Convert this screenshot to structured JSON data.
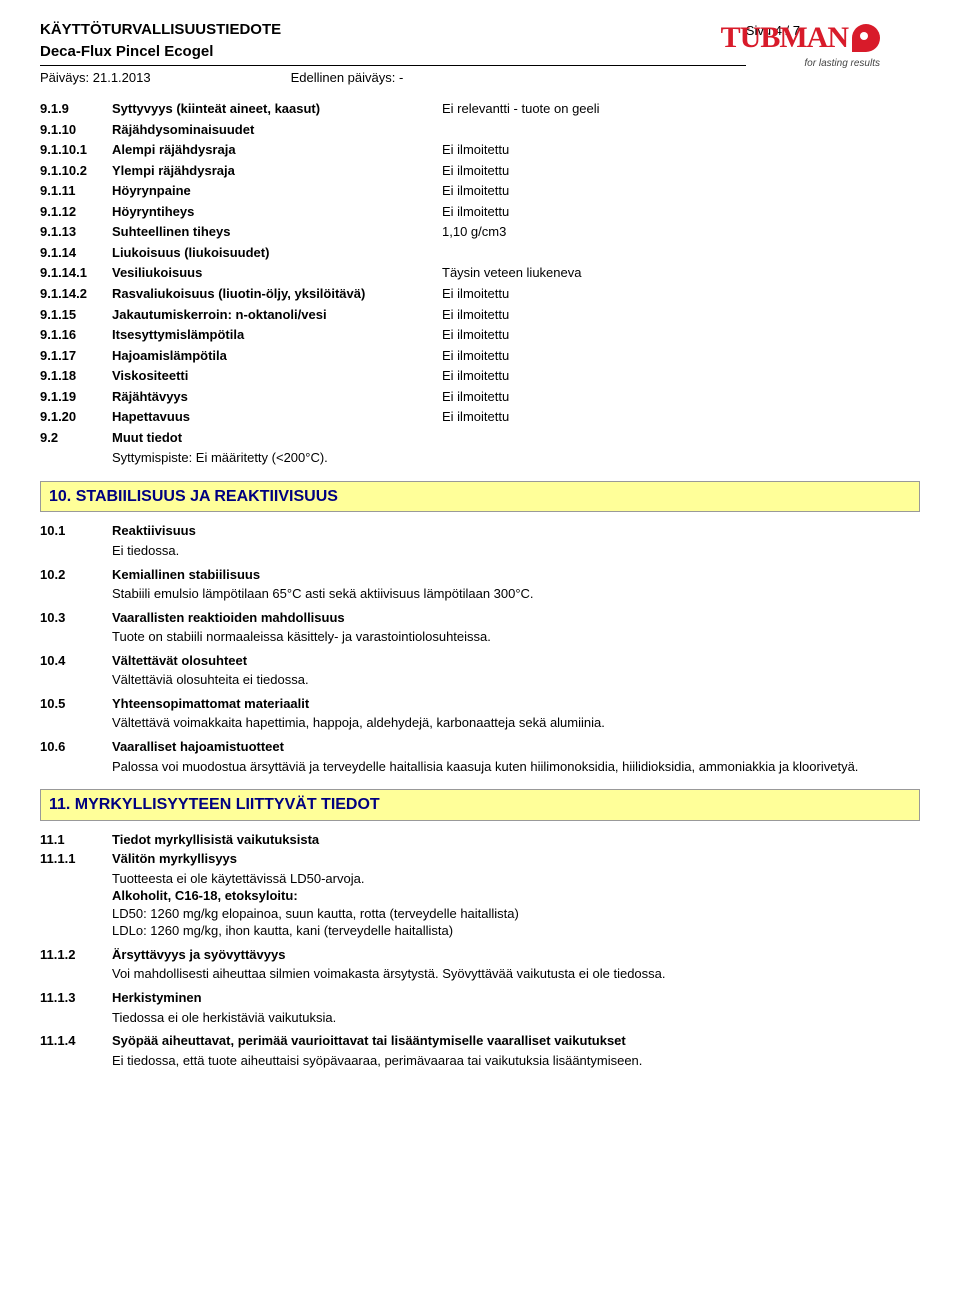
{
  "header": {
    "doc_title": "KÄYTTÖTURVALLISUUSTIEDOTE",
    "product_name": "Deca-Flux Pincel Ecogel",
    "date_label": "Päiväys: 21.1.2013",
    "prev_date_label": "Edellinen päiväys: -",
    "page_label": "Sivu 4 / 7",
    "logo_text": "TUBMAN",
    "logo_tagline": "for lasting results"
  },
  "section9": {
    "rows": [
      {
        "num": "9.1.9",
        "label": "Syttyvyys (kiinteät aineet, kaasut)",
        "val": "Ei relevantti - tuote on geeli"
      },
      {
        "num": "9.1.10",
        "label": "Räjähdysominaisuudet",
        "val": ""
      },
      {
        "num": "9.1.10.1",
        "label": "Alempi räjähdysraja",
        "val": "Ei ilmoitettu"
      },
      {
        "num": "9.1.10.2",
        "label": "Ylempi räjähdysraja",
        "val": "Ei ilmoitettu"
      },
      {
        "num": "9.1.11",
        "label": "Höyrynpaine",
        "val": "Ei ilmoitettu"
      },
      {
        "num": "9.1.12",
        "label": "Höyryntiheys",
        "val": "Ei ilmoitettu"
      },
      {
        "num": "9.1.13",
        "label": "Suhteellinen tiheys",
        "val": "1,10 g/cm3"
      },
      {
        "num": "9.1.14",
        "label": "Liukoisuus (liukoisuudet)",
        "val": ""
      },
      {
        "num": "9.1.14.1",
        "label": "Vesiliukoisuus",
        "val": "Täysin veteen liukeneva"
      },
      {
        "num": "9.1.14.2",
        "label": "Rasvaliukoisuus (liuotin-öljy, yksilöitävä)",
        "val": "Ei ilmoitettu"
      },
      {
        "num": "9.1.15",
        "label": "Jakautumiskerroin: n-oktanoli/vesi",
        "val": "Ei ilmoitettu"
      },
      {
        "num": "9.1.16",
        "label": "Itsesyttymislämpötila",
        "val": "Ei ilmoitettu"
      },
      {
        "num": "9.1.17",
        "label": "Hajoamislämpötila",
        "val": "Ei ilmoitettu"
      },
      {
        "num": "9.1.18",
        "label": "Viskositeetti",
        "val": "Ei ilmoitettu"
      },
      {
        "num": "9.1.19",
        "label": "Räjähtävyys",
        "val": "Ei ilmoitettu"
      },
      {
        "num": "9.1.20",
        "label": "Hapettavuus",
        "val": "Ei ilmoitettu"
      }
    ],
    "muut": {
      "num": "9.2",
      "label": "Muut tiedot",
      "body": "Syttymispiste: Ei määritetty (<200°C)."
    }
  },
  "section10": {
    "title": "10. STABIILISUUS JA REAKTIIVISUUS",
    "items": [
      {
        "num": "10.1",
        "label": "Reaktiivisuus",
        "body": "Ei tiedossa."
      },
      {
        "num": "10.2",
        "label": "Kemiallinen stabiilisuus",
        "body": "Stabiili emulsio lämpötilaan 65°C asti sekä aktiivisuus lämpötilaan 300°C."
      },
      {
        "num": "10.3",
        "label": "Vaarallisten reaktioiden mahdollisuus",
        "body": "Tuote on stabiili normaaleissa käsittely- ja varastointiolosuhteissa."
      },
      {
        "num": "10.4",
        "label": "Vältettävät olosuhteet",
        "body": "Vältettäviä olosuhteita ei tiedossa."
      },
      {
        "num": "10.5",
        "label": "Yhteensopimattomat materiaalit",
        "body": "Vältettävä voimakkaita hapettimia, happoja, aldehydejä, karbonaatteja sekä alumiinia."
      },
      {
        "num": "10.6",
        "label": "Vaaralliset hajoamistuotteet",
        "body": "Palossa voi muodostua ärsyttäviä ja terveydelle haitallisia kaasuja kuten hiilimonoksidia, hiilidioksidia, ammoniakkia ja kloorivetyä."
      }
    ]
  },
  "section11": {
    "title": "11. MYRKYLLISYYTEEN LIITTYVÄT TIEDOT",
    "s11_1": {
      "num": "11.1",
      "label": "Tiedot myrkyllisistä vaikutuksista"
    },
    "s11_1_1": {
      "num": "11.1.1",
      "label": "Välitön myrkyllisyys",
      "line1": "Tuotteesta ei ole käytettävissä LD50-arvoja.",
      "bold_line": "Alkoholit, C16-18, etoksyloitu:",
      "line2": "LD50: 1260 mg/kg elopainoa, suun kautta, rotta (terveydelle haitallista)",
      "line3": "LDLo: 1260 mg/kg, ihon kautta, kani (terveydelle haitallista)"
    },
    "s11_1_2": {
      "num": "11.1.2",
      "label": "Ärsyttävyys ja syövyttävyys",
      "body": "Voi mahdollisesti aiheuttaa silmien voimakasta ärsytystä. Syövyttävää vaikutusta ei ole tiedossa."
    },
    "s11_1_3": {
      "num": "11.1.3",
      "label": "Herkistyminen",
      "body": "Tiedossa ei ole herkistäviä vaikutuksia."
    },
    "s11_1_4": {
      "num": "11.1.4",
      "label": "Syöpää aiheuttavat, perimää vaurioittavat tai lisääntymiselle vaaralliset vaikutukset",
      "body": "Ei tiedossa, että tuote aiheuttaisi syöpävaaraa, perimävaaraa tai vaikutuksia lisääntymiseen."
    }
  },
  "styles": {
    "section_hdr_bg": "#ffff99",
    "section_hdr_color": "#000080",
    "section_hdr_border": "#999999",
    "logo_color": "#d81b2a"
  }
}
